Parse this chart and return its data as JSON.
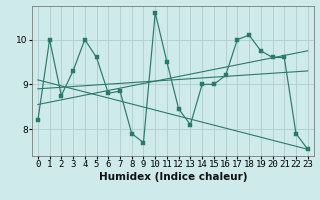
{
  "title": "",
  "xlabel": "Humidex (Indice chaleur)",
  "background_color": "#ceeaea",
  "grid_color": "#b0cccc",
  "line_color": "#2a7a68",
  "xlim": [
    -0.5,
    23.5
  ],
  "ylim": [
    7.4,
    10.75
  ],
  "yticks": [
    8,
    9,
    10
  ],
  "xticks": [
    0,
    1,
    2,
    3,
    4,
    5,
    6,
    7,
    8,
    9,
    10,
    11,
    12,
    13,
    14,
    15,
    16,
    17,
    18,
    19,
    20,
    21,
    22,
    23
  ],
  "series1_x": [
    0,
    1,
    2,
    3,
    4,
    5,
    6,
    7,
    8,
    9,
    10,
    11,
    12,
    13,
    14,
    15,
    16,
    17,
    18,
    19,
    20,
    21,
    22,
    23
  ],
  "series1_y": [
    8.2,
    10.0,
    8.75,
    9.3,
    10.0,
    9.6,
    8.8,
    8.85,
    7.9,
    7.7,
    10.6,
    9.5,
    8.45,
    8.1,
    9.0,
    9.0,
    9.2,
    10.0,
    10.1,
    9.75,
    9.6,
    9.6,
    7.9,
    7.55
  ],
  "line2_x": [
    0,
    23
  ],
  "line2_y": [
    8.55,
    9.75
  ],
  "line3_x": [
    0,
    23
  ],
  "line3_y": [
    8.9,
    9.3
  ],
  "line4_x": [
    0,
    23
  ],
  "line4_y": [
    9.1,
    7.55
  ],
  "tick_fontsize": 6.5,
  "label_fontsize": 7.5
}
